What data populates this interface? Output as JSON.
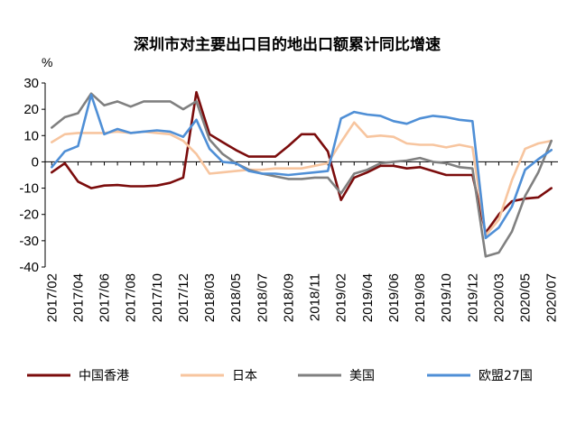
{
  "chart_data": {
    "type": "line",
    "title": "深圳市对主要出口目的地出口额累计同比增速",
    "ylabel": "%",
    "ylim": [
      -40,
      30
    ],
    "yticks": [
      30,
      20,
      10,
      0,
      -10,
      -20,
      -30,
      -40
    ],
    "x": [
      "2017/02",
      "2017/03",
      "2017/04",
      "2017/05",
      "2017/06",
      "2017/07",
      "2017/08",
      "2017/09",
      "2017/10",
      "2017/11",
      "2017/12",
      "2018/02",
      "2018/03",
      "2018/04",
      "2018/05",
      "2018/06",
      "2018/07",
      "2018/08",
      "2018/09",
      "2018/10",
      "2018/11",
      "2018/12",
      "2019/02",
      "2019/03",
      "2019/04",
      "2019/05",
      "2019/06",
      "2019/07",
      "2019/08",
      "2019/09",
      "2019/10",
      "2019/11",
      "2019/12",
      "2020/02",
      "2020/03",
      "2020/04",
      "2020/05",
      "2020/06",
      "2020/07"
    ],
    "xtick_labels": [
      "2017/02",
      "2017/04",
      "2017/06",
      "2017/08",
      "2017/10",
      "2017/12",
      "2018/03",
      "2018/05",
      "2018/07",
      "2018/09",
      "2018/11",
      "2019/02",
      "2019/04",
      "2019/06",
      "2019/08",
      "2019/10",
      "2019/12",
      "2020/03",
      "2020/05",
      "2020/07"
    ],
    "legend_position": "bottom",
    "series": [
      {
        "name": "中国香港",
        "color": "#7b0c0c",
        "values": [
          -4,
          -0.5,
          -7.5,
          -10,
          -9,
          -8.8,
          -9.3,
          -9.3,
          -9,
          -8,
          -6,
          26.5,
          10.5,
          7.5,
          4.5,
          2,
          2,
          2,
          6,
          10.5,
          10.5,
          4,
          -14.5,
          -6,
          -4,
          -1.5,
          -1.5,
          -2.5,
          -2,
          -3.5,
          -5,
          -5,
          -5,
          -27,
          -20,
          -15,
          -14,
          -13.5,
          -10
        ]
      },
      {
        "name": "日本",
        "color": "#f7c59f",
        "values": [
          7.5,
          10.5,
          11,
          11,
          11,
          11.5,
          11,
          11.5,
          11,
          10.5,
          8,
          3,
          -4.5,
          -4,
          -3.5,
          -3,
          -3,
          -2.5,
          -2.5,
          -2.5,
          -1.5,
          -0.5,
          7.5,
          15,
          9.5,
          10,
          9.5,
          7,
          6.5,
          6.5,
          5.5,
          6.5,
          5.5,
          -28,
          -22,
          -7,
          5,
          7,
          8
        ]
      },
      {
        "name": "美国",
        "color": "#808080",
        "values": [
          13,
          17,
          18.5,
          26,
          21.5,
          23,
          21,
          23,
          23,
          23,
          20,
          23,
          8.5,
          3,
          -0.5,
          -3,
          -4.5,
          -5.5,
          -6.5,
          -6.5,
          -6,
          -6,
          -12,
          -4.5,
          -3,
          -0.5,
          0,
          0.5,
          1.5,
          0,
          -0.5,
          -2,
          -2.5,
          -36,
          -34.5,
          -26.5,
          -13,
          -4,
          8
        ]
      },
      {
        "name": "欧盟27国",
        "color": "#4f8fd6",
        "values": [
          -2,
          4,
          6,
          25.5,
          10.5,
          12.5,
          11,
          11.5,
          12,
          11.5,
          9.5,
          16,
          5,
          0,
          -0.5,
          -3.5,
          -4.5,
          -4.5,
          -5,
          -4.5,
          -4,
          -3.5,
          16.5,
          19,
          18,
          17.5,
          15.5,
          14.5,
          16.5,
          17.5,
          17,
          16,
          15.5,
          -29,
          -25,
          -17,
          -3,
          1,
          4.5
        ]
      }
    ]
  }
}
